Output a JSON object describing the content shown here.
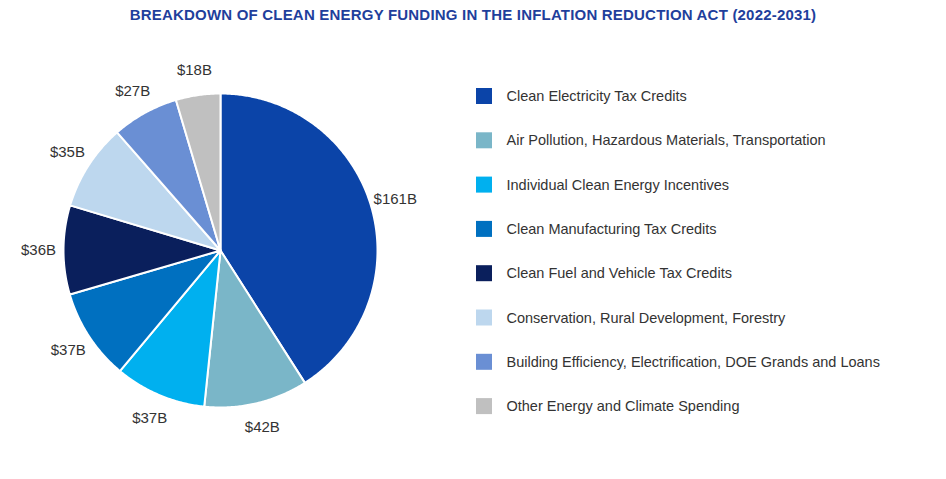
{
  "chart_data": {
    "type": "pie",
    "title": "BREAKDOWN OF CLEAN ENERGY FUNDING IN THE INFLATION REDUCTION ACT (2022-2031)",
    "categories": [
      "Clean Electricity Tax Credits",
      "Air Pollution, Hazardous Materials, Transportation",
      "Individual Clean Energy Incentives",
      "Clean Manufacturing Tax Credits",
      "Clean Fuel and Vehicle Tax Credits",
      "Conservation, Rural Development, Forestry",
      "Building Efficiency, Electrification, DOE Grands and Loans",
      "Other Energy and Climate Spending"
    ],
    "values": [
      161,
      42,
      37,
      37,
      36,
      35,
      27,
      18
    ],
    "value_labels": [
      "$161B",
      "$42B",
      "$37B",
      "$37B",
      "$36B",
      "$35B",
      "$27B",
      "$18B"
    ],
    "colors": [
      "#0b44a8",
      "#7ab6c8",
      "#00b0ef",
      "#0070c0",
      "#0a1f5c",
      "#bdd7ee",
      "#6a8fd4",
      "#c0c0c0"
    ],
    "legend": "right",
    "data_labels": true,
    "tick_labels": false
  }
}
